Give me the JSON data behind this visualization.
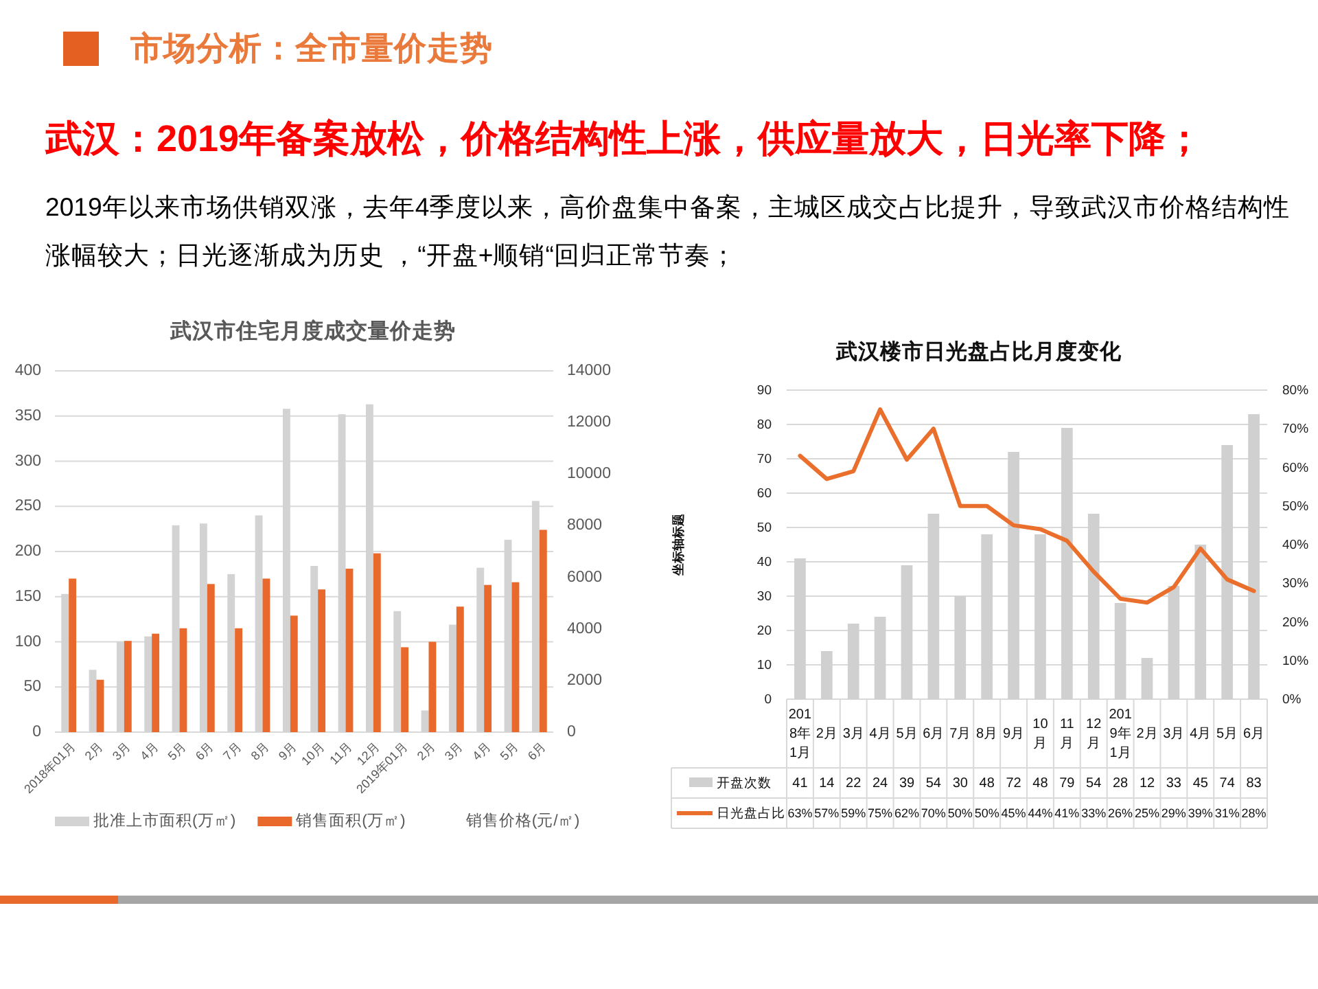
{
  "chart_data": [
    {
      "type": "other",
      "title": "市场分析：全市量价走势",
      "subtitle": "武汉：2019年备案放松，价格结构性上涨，供应量放大，日光率下降；",
      "annotations": [
        "2019年以来市场供销双涨，去年4季度以来，高价盘集中备案，主城区成交占比提升，导致武汉市价格结构性涨幅较大；日光逐渐成为历史 ，“开盘+顺销“回归正常节奏；"
      ]
    },
    {
      "type": "bar",
      "title": "武汉市住宅月度成交量价走势",
      "categories": [
        "2018年01月",
        "2月",
        "3月",
        "4月",
        "5月",
        "6月",
        "7月",
        "8月",
        "9月",
        "10月",
        "11月",
        "12月",
        "2019年01月",
        "2月",
        "3月",
        "4月",
        "5月",
        "6月"
      ],
      "series": [
        {
          "name": "批准上市面积(万㎡)",
          "color": "#d3d3d3",
          "values": [
            153,
            69,
            100,
            106,
            229,
            231,
            175,
            240,
            358,
            184,
            352,
            363,
            134,
            24,
            119,
            182,
            213,
            256
          ]
        },
        {
          "name": "销售面积(万㎡)",
          "color": "#e8692b",
          "values": [
            170,
            58,
            101,
            109,
            115,
            164,
            115,
            170,
            129,
            158,
            181,
            198,
            94,
            100,
            139,
            163,
            166,
            224
          ]
        },
        {
          "name": "销售价格(元/㎡)",
          "type": "line",
          "axis": "y2",
          "values": [
            null,
            null,
            null,
            null,
            null,
            null,
            null,
            null,
            null,
            null,
            null,
            null,
            null,
            null,
            null,
            null,
            null,
            null
          ]
        }
      ],
      "ylim": [
        0,
        400
      ],
      "yticks": [
        0,
        50,
        100,
        150,
        200,
        250,
        300,
        350,
        400
      ],
      "y2lim": [
        0,
        14000
      ],
      "y2ticks": [
        0,
        2000,
        4000,
        6000,
        8000,
        10000,
        12000,
        14000
      ],
      "grid": "y",
      "legend": "bottom"
    },
    {
      "type": "bar",
      "title": "武汉楼市日光盘占比月度变化",
      "ylabel": "坐标轴标题",
      "categories": [
        "2018年1月",
        "2月",
        "3月",
        "4月",
        "5月",
        "6月",
        "7月",
        "8月",
        "9月",
        "10月",
        "11月",
        "12月",
        "2019年1月",
        "2月",
        "3月",
        "4月",
        "5月",
        "6月"
      ],
      "series": [
        {
          "name": "开盘次数",
          "color": "#d0d0d0",
          "values": [
            41,
            14,
            22,
            24,
            39,
            54,
            30,
            48,
            72,
            48,
            79,
            54,
            28,
            12,
            33,
            45,
            74,
            83
          ],
          "value_labels": [
            "41",
            "14",
            "22",
            "24",
            "39",
            "54",
            "30",
            "48",
            "72",
            "48",
            "79",
            "54",
            "28",
            "12",
            "33",
            "45",
            "74",
            "83"
          ]
        },
        {
          "name": "日光盘占比",
          "type": "line",
          "axis": "y2",
          "color": "#ea6f2c",
          "values": [
            63,
            57,
            59,
            75,
            62,
            70,
            50,
            50,
            45,
            44,
            41,
            33,
            26,
            25,
            29,
            39,
            31,
            28
          ],
          "value_labels": [
            "63%",
            "57%",
            "59%",
            "75%",
            "62%",
            "70%",
            "50%",
            "50%",
            "45%",
            "44%",
            "41%",
            "33%",
            "26%",
            "25%",
            "29%",
            "39%",
            "31%",
            "28%"
          ]
        }
      ],
      "ylim": [
        0,
        90
      ],
      "yticks": [
        0,
        10,
        20,
        30,
        40,
        50,
        60,
        70,
        80,
        90
      ],
      "y2lim": [
        0,
        80
      ],
      "y2ticks": [
        {
          "value": 0,
          "label": "0%"
        },
        {
          "value": 10,
          "label": "10%"
        },
        {
          "value": 20,
          "label": "20%"
        },
        {
          "value": 30,
          "label": "30%"
        },
        {
          "value": 40,
          "label": "40%"
        },
        {
          "value": 50,
          "label": "50%"
        },
        {
          "value": 60,
          "label": "60%"
        },
        {
          "value": 70,
          "label": "70%"
        },
        {
          "value": 80,
          "label": "80%"
        }
      ],
      "grid": "y",
      "legend": "bottom"
    }
  ]
}
